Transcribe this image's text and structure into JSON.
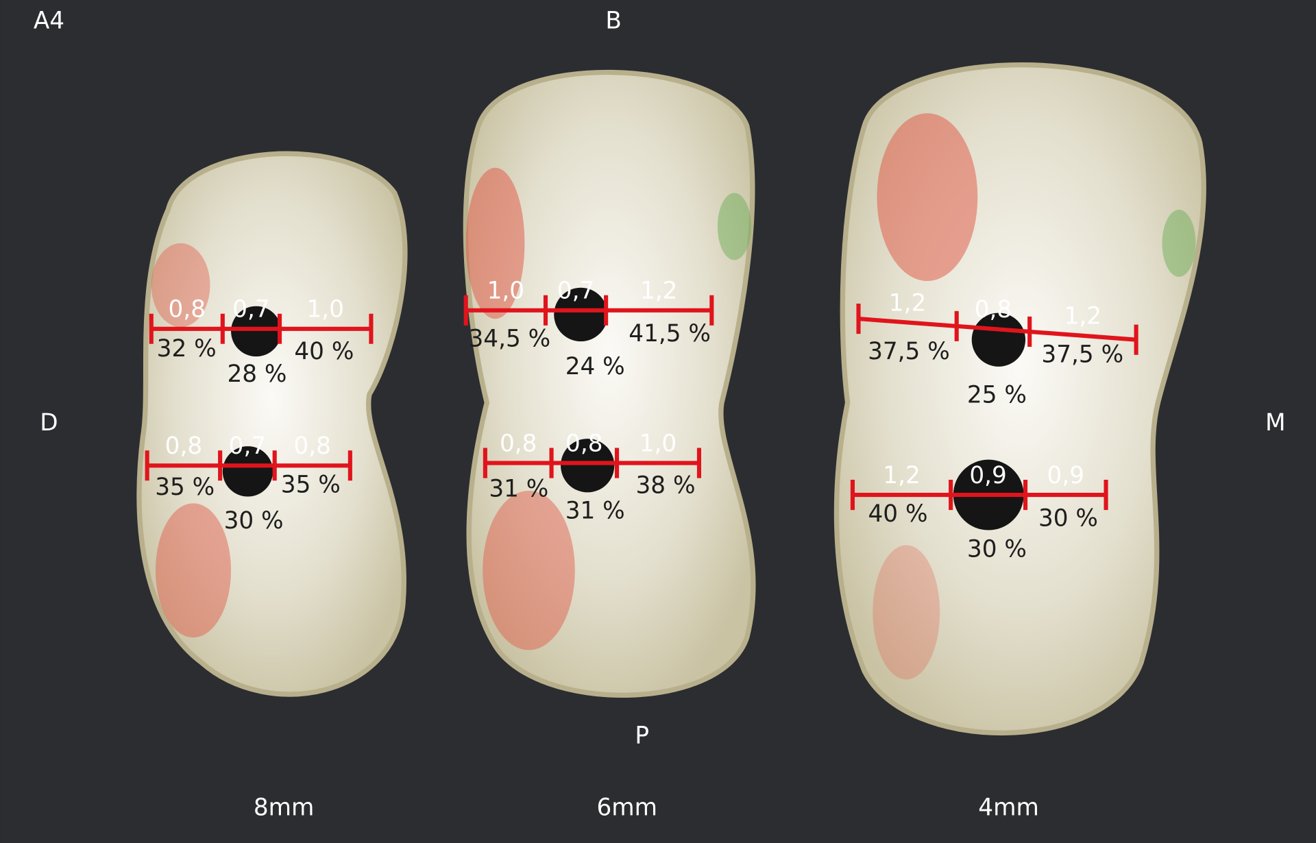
{
  "labels": {
    "top_left": "A4",
    "top": "B",
    "left": "D",
    "right": "M",
    "bottom": "P"
  },
  "specimens": [
    {
      "label": "8mm",
      "rows": [
        {
          "thickness": [
            "0,8",
            "0,7",
            "1,0"
          ],
          "percent": [
            "32 %",
            "28 %",
            "40 %"
          ]
        },
        {
          "thickness": [
            "0,8",
            "0,7",
            "0,8"
          ],
          "percent": [
            "35 %",
            "30 %",
            "35 %"
          ]
        }
      ]
    },
    {
      "label": "6mm",
      "rows": [
        {
          "thickness": [
            "1,0",
            "0,7",
            "1,2"
          ],
          "percent": [
            "34,5 %",
            "24 %",
            "41,5 %"
          ]
        },
        {
          "thickness": [
            "0,8",
            "0,8",
            "1,0"
          ],
          "percent": [
            "31 %",
            "31 %",
            "38 %"
          ]
        }
      ]
    },
    {
      "label": "4mm",
      "rows": [
        {
          "thickness": [
            "1,2",
            "0,8",
            "1,2"
          ],
          "percent": [
            "37,5 %",
            "25 %",
            "37,5 %"
          ]
        },
        {
          "thickness": [
            "1,2",
            "0,9",
            "0,9"
          ],
          "percent": [
            "40 %",
            "30 %",
            "30 %"
          ]
        }
      ]
    }
  ]
}
